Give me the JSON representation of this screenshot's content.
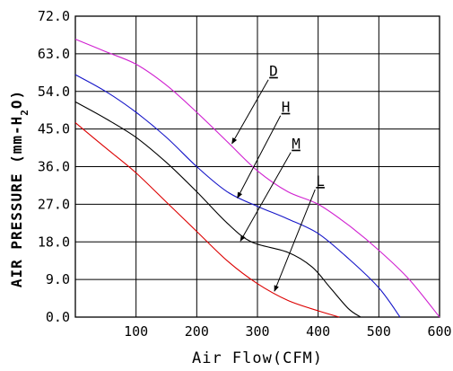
{
  "chart_data": {
    "type": "line",
    "xlabel": "Air Flow(CFM)",
    "ylabel": "AIR PRESSURE (mm-H",
    "ylabel_sub": "2",
    "ylabel_end": "O)",
    "xlim": [
      0,
      600
    ],
    "ylim": [
      0,
      72
    ],
    "grid": true,
    "x_ticks": [
      {
        "value": 100,
        "label": "100"
      },
      {
        "value": 200,
        "label": "200"
      },
      {
        "value": 300,
        "label": "300"
      },
      {
        "value": 400,
        "label": "400"
      },
      {
        "value": 500,
        "label": "500"
      },
      {
        "value": 600,
        "label": "600"
      }
    ],
    "y_ticks": [
      {
        "value": 0,
        "label": "0.0"
      },
      {
        "value": 9,
        "label": "9.0"
      },
      {
        "value": 18,
        "label": "18.0"
      },
      {
        "value": 27,
        "label": "27.0"
      },
      {
        "value": 36,
        "label": "36.0"
      },
      {
        "value": 45,
        "label": "45.0"
      },
      {
        "value": 54,
        "label": "54.0"
      },
      {
        "value": 63,
        "label": "63.0"
      },
      {
        "value": 72,
        "label": "72.0"
      }
    ],
    "series": [
      {
        "name": "D",
        "color": "#d020d0",
        "points": [
          [
            0,
            66.5
          ],
          [
            50,
            63.5
          ],
          [
            100,
            60.5
          ],
          [
            150,
            55.5
          ],
          [
            200,
            49
          ],
          [
            250,
            42
          ],
          [
            300,
            35
          ],
          [
            350,
            30
          ],
          [
            400,
            27
          ],
          [
            450,
            22
          ],
          [
            500,
            16
          ],
          [
            550,
            9
          ],
          [
            600,
            0
          ]
        ],
        "pointer": {
          "from": [
            318,
            56.8
          ],
          "to": [
            258,
            41.5
          ]
        }
      },
      {
        "name": "H",
        "color": "#1414c8",
        "points": [
          [
            0,
            58
          ],
          [
            50,
            54
          ],
          [
            100,
            49
          ],
          [
            150,
            43
          ],
          [
            200,
            36
          ],
          [
            250,
            30
          ],
          [
            300,
            26.5
          ],
          [
            350,
            23.5
          ],
          [
            400,
            20
          ],
          [
            450,
            14
          ],
          [
            500,
            7
          ],
          [
            535,
            0
          ]
        ],
        "pointer": {
          "from": [
            338,
            48.2
          ],
          "to": [
            267,
            28.5
          ]
        }
      },
      {
        "name": "M",
        "color": "#000000",
        "points": [
          [
            0,
            51.5
          ],
          [
            50,
            47.5
          ],
          [
            100,
            43
          ],
          [
            150,
            37
          ],
          [
            200,
            30
          ],
          [
            250,
            22.5
          ],
          [
            290,
            18
          ],
          [
            350,
            15.5
          ],
          [
            390,
            12
          ],
          [
            420,
            7
          ],
          [
            450,
            2
          ],
          [
            470,
            0
          ]
        ],
        "pointer": {
          "from": [
            355,
            39.4
          ],
          "to": [
            272,
            18.2
          ]
        }
      },
      {
        "name": "L",
        "color": "#dc0000",
        "points": [
          [
            0,
            46.5
          ],
          [
            50,
            40.5
          ],
          [
            100,
            34.5
          ],
          [
            150,
            27.5
          ],
          [
            200,
            20.5
          ],
          [
            250,
            13.5
          ],
          [
            300,
            8
          ],
          [
            350,
            4
          ],
          [
            400,
            1.5
          ],
          [
            435,
            0
          ]
        ],
        "pointer": {
          "from": [
            395,
            30.5
          ],
          "to": [
            328,
            6.2
          ]
        }
      }
    ]
  }
}
